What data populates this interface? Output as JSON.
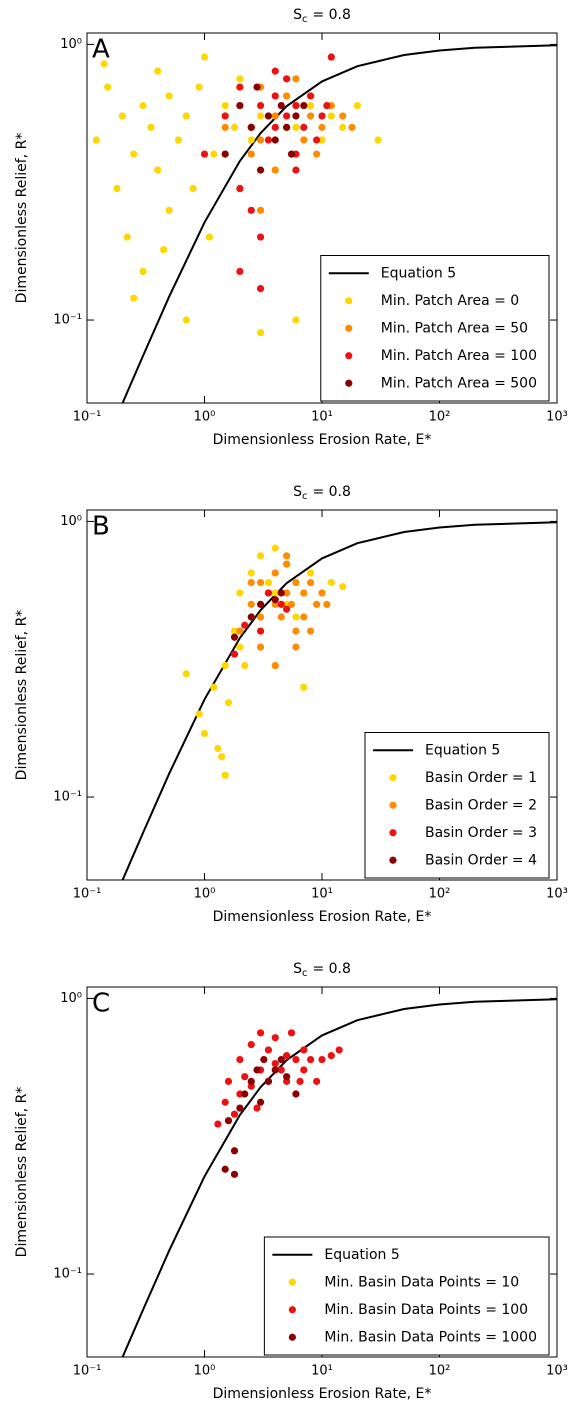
{
  "chart_data": [
    {
      "type": "scatter",
      "title_parts": [
        "S",
        "c",
        "= 0.8"
      ],
      "panel_label": "A",
      "x_label": "Dimensionless Erosion Rate, E*",
      "y_label": "Dimensionless Relief, R*",
      "xscale": "log",
      "yscale": "log",
      "xlim": [
        0.1,
        1000
      ],
      "ylim": [
        0.05,
        1.1
      ],
      "xticks": [
        {
          "value": 0.1,
          "label": "10⁻¹"
        },
        {
          "value": 1,
          "label": "10⁰"
        },
        {
          "value": 10,
          "label": "10¹"
        },
        {
          "value": 100,
          "label": "10²"
        },
        {
          "value": 1000,
          "label": "10³"
        }
      ],
      "yticks": [
        {
          "value": 0.1,
          "label": "10⁻¹"
        },
        {
          "value": 1,
          "label": "10⁰"
        }
      ],
      "legend_loc": "lower right",
      "series": [
        {
          "name": "Equation 5",
          "type": "line",
          "color": "#000000",
          "x": [
            0.2,
            0.3,
            0.5,
            1,
            2,
            3,
            5,
            10,
            20,
            50,
            100,
            200,
            1000
          ],
          "values": [
            0.0498,
            0.0742,
            0.1215,
            0.226,
            0.3774,
            0.4765,
            0.5968,
            0.734,
            0.8336,
            0.9154,
            0.9508,
            0.972,
            0.9928
          ]
        },
        {
          "name": "Min. Patch Area = 0",
          "type": "scatter",
          "color": "#ffd700",
          "x": [
            0.12,
            0.15,
            0.18,
            0.2,
            0.22,
            0.25,
            0.3,
            0.3,
            0.35,
            0.4,
            0.4,
            0.5,
            0.5,
            0.6,
            0.7,
            0.8,
            0.9,
            1.0,
            1.2,
            1.5,
            1.8,
            2,
            2.5,
            3,
            4,
            5,
            6,
            8,
            10,
            12,
            15,
            20,
            30,
            0.14,
            0.25,
            0.45,
            0.7,
            1.1,
            3,
            6
          ],
          "values": [
            0.45,
            0.7,
            0.3,
            0.55,
            0.2,
            0.4,
            0.6,
            0.15,
            0.5,
            0.35,
            0.8,
            0.25,
            0.65,
            0.45,
            0.55,
            0.3,
            0.7,
            0.9,
            0.4,
            0.6,
            0.5,
            0.75,
            0.45,
            0.55,
            0.35,
            0.65,
            0.5,
            0.6,
            0.45,
            0.55,
            0.5,
            0.6,
            0.45,
            0.85,
            0.12,
            0.18,
            0.1,
            0.2,
            0.09,
            0.1
          ]
        },
        {
          "name": "Min. Patch Area = 50",
          "type": "scatter",
          "color": "#ff8c00",
          "x": [
            1.5,
            2,
            2.5,
            3,
            3,
            4,
            4,
            5,
            5,
            6,
            7,
            8,
            10,
            12,
            15,
            2,
            3,
            6,
            9,
            18
          ],
          "values": [
            0.5,
            0.6,
            0.4,
            0.7,
            0.45,
            0.55,
            0.35,
            0.65,
            0.5,
            0.6,
            0.45,
            0.55,
            0.5,
            0.6,
            0.55,
            0.3,
            0.25,
            0.75,
            0.4,
            0.5
          ]
        },
        {
          "name": "Min. Patch Area = 100",
          "type": "scatter",
          "color": "#ee1111",
          "x": [
            1,
            1.5,
            2,
            2,
            2.5,
            3,
            3,
            3.5,
            4,
            4,
            5,
            5,
            6,
            6,
            7,
            8,
            9,
            10,
            12,
            2,
            2.5,
            4,
            6,
            3,
            11
          ],
          "values": [
            0.4,
            0.55,
            0.3,
            0.7,
            0.5,
            0.6,
            0.2,
            0.45,
            0.65,
            0.5,
            0.55,
            0.75,
            0.4,
            0.6,
            0.5,
            0.65,
            0.45,
            0.55,
            0.9,
            0.15,
            0.25,
            0.8,
            0.35,
            0.13,
            0.6
          ]
        },
        {
          "name": "Min. Patch Area = 500",
          "type": "scatter",
          "color": "#8b0000",
          "x": [
            1.5,
            2,
            2.5,
            3,
            3.5,
            4,
            4.5,
            5,
            6,
            7,
            2.8,
            5.5
          ],
          "values": [
            0.4,
            0.6,
            0.5,
            0.35,
            0.55,
            0.45,
            0.6,
            0.5,
            0.55,
            0.6,
            0.7,
            0.4
          ]
        }
      ]
    },
    {
      "type": "scatter",
      "title_parts": [
        "S",
        "c",
        "= 0.8"
      ],
      "panel_label": "B",
      "x_label": "Dimensionless Erosion Rate, E*",
      "y_label": "Dimensionless Relief, R*",
      "xscale": "log",
      "yscale": "log",
      "xlim": [
        0.1,
        1000
      ],
      "ylim": [
        0.05,
        1.1
      ],
      "xticks": [
        {
          "value": 0.1,
          "label": "10⁻¹"
        },
        {
          "value": 1,
          "label": "10⁰"
        },
        {
          "value": 10,
          "label": "10¹"
        },
        {
          "value": 100,
          "label": "10²"
        },
        {
          "value": 1000,
          "label": "10³"
        }
      ],
      "yticks": [
        {
          "value": 0.1,
          "label": "10⁻¹"
        },
        {
          "value": 1,
          "label": "10⁰"
        }
      ],
      "legend_loc": "lower right",
      "series": [
        {
          "name": "Equation 5",
          "type": "line",
          "color": "#000000",
          "x": [
            0.2,
            0.3,
            0.5,
            1,
            2,
            3,
            5,
            10,
            20,
            50,
            100,
            200,
            1000
          ],
          "values": [
            0.0498,
            0.0742,
            0.1215,
            0.226,
            0.3774,
            0.4765,
            0.5968,
            0.734,
            0.8336,
            0.9154,
            0.9508,
            0.972,
            0.9928
          ]
        },
        {
          "name": "Basin Order = 1",
          "type": "scatter",
          "color": "#ffd700",
          "x": [
            0.7,
            0.9,
            1,
            1.2,
            1.3,
            1.5,
            1.5,
            1.8,
            2,
            2,
            2.5,
            2.5,
            3,
            3,
            3.5,
            4,
            4,
            5,
            5,
            6,
            6,
            7,
            8,
            10,
            12,
            15,
            1.4,
            1.6,
            2.2,
            7
          ],
          "values": [
            0.28,
            0.2,
            0.17,
            0.25,
            0.15,
            0.3,
            0.12,
            0.4,
            0.35,
            0.55,
            0.45,
            0.65,
            0.5,
            0.75,
            0.6,
            0.55,
            0.8,
            0.5,
            0.7,
            0.6,
            0.45,
            0.55,
            0.65,
            0.55,
            0.6,
            0.58,
            0.14,
            0.22,
            0.3,
            0.25
          ]
        },
        {
          "name": "Basin Order = 2",
          "type": "scatter",
          "color": "#ff8c00",
          "x": [
            2,
            2.5,
            3,
            3,
            3.5,
            4,
            4,
            4.5,
            5,
            5,
            5.5,
            6,
            6,
            7,
            7,
            8,
            9,
            10,
            3,
            4,
            5,
            6,
            2.5,
            8,
            11
          ],
          "values": [
            0.4,
            0.5,
            0.45,
            0.6,
            0.55,
            0.5,
            0.65,
            0.45,
            0.55,
            0.7,
            0.5,
            0.6,
            0.4,
            0.55,
            0.45,
            0.6,
            0.5,
            0.55,
            0.35,
            0.3,
            0.75,
            0.35,
            0.6,
            0.4,
            0.5
          ]
        },
        {
          "name": "Basin Order = 3",
          "type": "scatter",
          "color": "#ee1111",
          "x": [
            1.8,
            2.2,
            3,
            3.5,
            4.5,
            5
          ],
          "values": [
            0.33,
            0.42,
            0.4,
            0.55,
            0.5,
            0.48
          ]
        },
        {
          "name": "Basin Order = 4",
          "type": "scatter",
          "color": "#8b0000",
          "x": [
            1.8,
            2.5,
            3,
            4,
            4.5
          ],
          "values": [
            0.38,
            0.45,
            0.5,
            0.52,
            0.55
          ]
        }
      ]
    },
    {
      "type": "scatter",
      "title_parts": [
        "S",
        "c",
        "= 0.8"
      ],
      "panel_label": "C",
      "x_label": "Dimensionless Erosion Rate, E*",
      "y_label": "Dimensionless Relief, R*",
      "xscale": "log",
      "yscale": "log",
      "xlim": [
        0.1,
        1000
      ],
      "ylim": [
        0.05,
        1.1
      ],
      "xticks": [
        {
          "value": 0.1,
          "label": "10⁻¹"
        },
        {
          "value": 1,
          "label": "10⁰"
        },
        {
          "value": 10,
          "label": "10¹"
        },
        {
          "value": 100,
          "label": "10²"
        },
        {
          "value": 1000,
          "label": "10³"
        }
      ],
      "yticks": [
        {
          "value": 0.1,
          "label": "10⁻¹"
        },
        {
          "value": 1,
          "label": "10⁰"
        }
      ],
      "legend_loc": "lower right",
      "series": [
        {
          "name": "Equation 5",
          "type": "line",
          "color": "#000000",
          "x": [
            0.2,
            0.3,
            0.5,
            1,
            2,
            3,
            5,
            10,
            20,
            50,
            100,
            200,
            1000
          ],
          "values": [
            0.0498,
            0.0742,
            0.1215,
            0.226,
            0.3774,
            0.4765,
            0.5968,
            0.734,
            0.8336,
            0.9154,
            0.9508,
            0.972,
            0.9928
          ]
        },
        {
          "name": "Min. Basin Data Points = 10",
          "type": "scatter",
          "color": "#ffd700",
          "x": [],
          "values": []
        },
        {
          "name": "Min. Basin Data Points = 100",
          "type": "scatter",
          "color": "#ee1111",
          "x": [
            1.3,
            1.5,
            1.6,
            1.8,
            2,
            2,
            2.2,
            2.5,
            2.5,
            3,
            3,
            3.5,
            3.5,
            4,
            4,
            4.5,
            5,
            5,
            5.5,
            6,
            6,
            7,
            7,
            8,
            9,
            10,
            12,
            14,
            2.8,
            6.5
          ],
          "values": [
            0.35,
            0.42,
            0.5,
            0.38,
            0.45,
            0.6,
            0.52,
            0.48,
            0.68,
            0.55,
            0.75,
            0.5,
            0.65,
            0.58,
            0.72,
            0.55,
            0.5,
            0.62,
            0.75,
            0.6,
            0.45,
            0.55,
            0.65,
            0.6,
            0.5,
            0.6,
            0.62,
            0.65,
            0.4,
            0.5
          ]
        },
        {
          "name": "Min. Basin Data Points = 1000",
          "type": "scatter",
          "color": "#8b0000",
          "x": [
            1.5,
            1.6,
            1.8,
            1.8,
            2,
            2.2,
            2.5,
            2.8,
            3,
            3.2,
            3.5,
            4,
            4.5,
            5,
            6
          ],
          "values": [
            0.24,
            0.36,
            0.23,
            0.28,
            0.4,
            0.45,
            0.5,
            0.55,
            0.42,
            0.6,
            0.5,
            0.55,
            0.6,
            0.52,
            0.45
          ]
        }
      ]
    }
  ]
}
